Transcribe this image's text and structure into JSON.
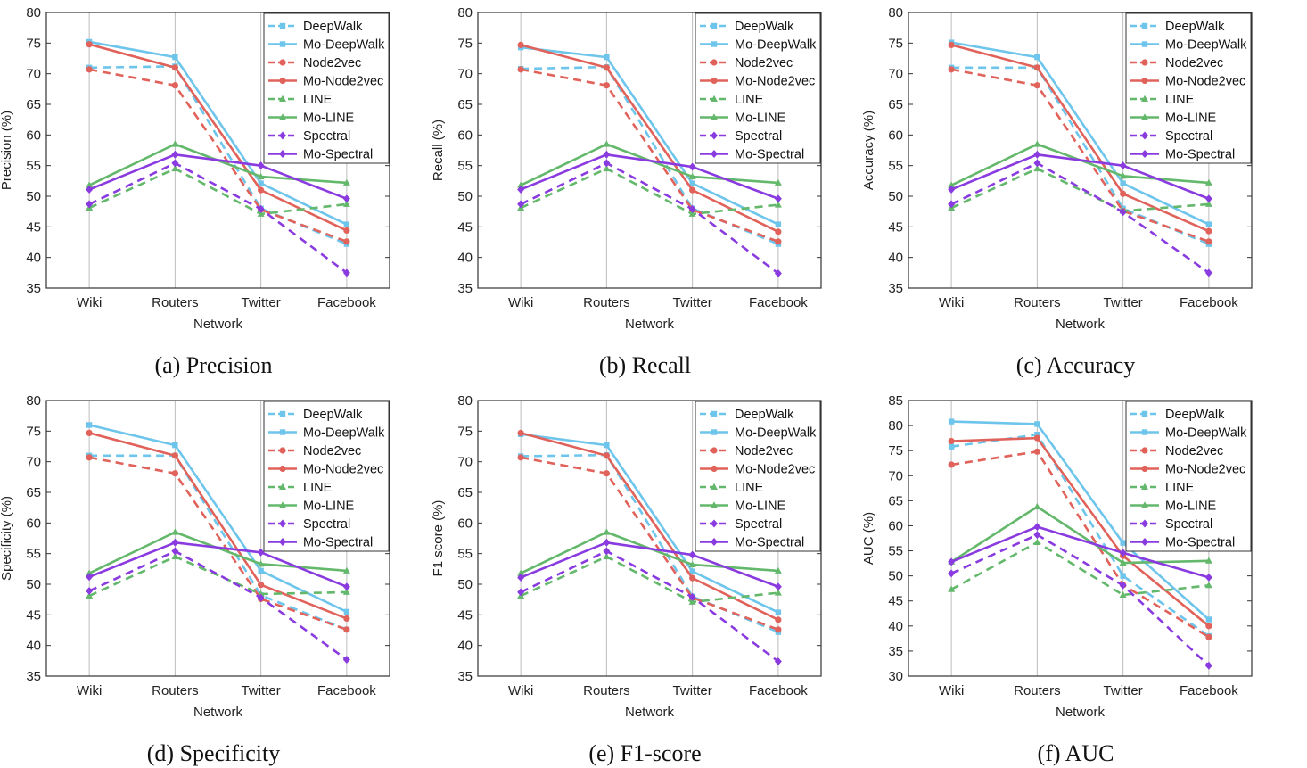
{
  "figure": {
    "colors": {
      "DeepWalk": "#6ec5ec",
      "Node2vec": "#e0625a",
      "LINE": "#63b86b",
      "Spectral": "#8a3be0"
    },
    "legend_placement": "top-right"
  },
  "chart_data": [
    {
      "type": "line",
      "caption": "(a) Precision",
      "ylabel": "Precision (%)",
      "xlabel": "Network",
      "categories": [
        "Wiki",
        "Routers",
        "Twitter",
        "Facebook"
      ],
      "ylim": [
        35,
        80
      ],
      "yticks": [
        35,
        40,
        45,
        50,
        55,
        60,
        65,
        70,
        75,
        80
      ],
      "series": [
        {
          "name": "DeepWalk",
          "values": [
            71.0,
            71.2,
            48.0,
            42.2
          ]
        },
        {
          "name": "Mo-DeepWalk",
          "values": [
            75.2,
            72.7,
            52.1,
            45.4
          ]
        },
        {
          "name": "Node2vec",
          "values": [
            70.7,
            68.1,
            47.8,
            42.6
          ]
        },
        {
          "name": "Mo-Node2vec",
          "values": [
            74.8,
            71.0,
            51.0,
            44.4
          ]
        },
        {
          "name": "LINE",
          "values": [
            48.1,
            54.5,
            47.1,
            48.7
          ]
        },
        {
          "name": "Mo-LINE",
          "values": [
            51.8,
            58.5,
            53.2,
            52.2
          ]
        },
        {
          "name": "Spectral",
          "values": [
            48.7,
            55.4,
            47.9,
            37.5
          ]
        },
        {
          "name": "Mo-Spectral",
          "values": [
            51.1,
            56.8,
            55.0,
            49.6
          ]
        }
      ]
    },
    {
      "type": "line",
      "caption": "(b) Recall",
      "ylabel": "Recall (%)",
      "xlabel": "Network",
      "categories": [
        "Wiki",
        "Routers",
        "Twitter",
        "Facebook"
      ],
      "ylim": [
        35,
        80
      ],
      "yticks": [
        35,
        40,
        45,
        50,
        55,
        60,
        65,
        70,
        75,
        80
      ],
      "series": [
        {
          "name": "DeepWalk",
          "values": [
            70.8,
            71.1,
            48.0,
            42.2
          ]
        },
        {
          "name": "Mo-DeepWalk",
          "values": [
            74.3,
            72.7,
            52.1,
            45.4
          ]
        },
        {
          "name": "Node2vec",
          "values": [
            70.7,
            68.1,
            47.8,
            42.6
          ]
        },
        {
          "name": "Mo-Node2vec",
          "values": [
            74.7,
            71.0,
            51.0,
            44.2
          ]
        },
        {
          "name": "LINE",
          "values": [
            48.1,
            54.5,
            47.1,
            48.6
          ]
        },
        {
          "name": "Mo-LINE",
          "values": [
            51.8,
            58.5,
            53.2,
            52.2
          ]
        },
        {
          "name": "Spectral",
          "values": [
            48.7,
            55.4,
            47.9,
            37.4
          ]
        },
        {
          "name": "Mo-Spectral",
          "values": [
            51.1,
            56.8,
            54.8,
            49.6
          ]
        }
      ]
    },
    {
      "type": "line",
      "caption": "(c) Accuracy",
      "ylabel": "Accuracy (%)",
      "xlabel": "Network",
      "categories": [
        "Wiki",
        "Routers",
        "Twitter",
        "Facebook"
      ],
      "ylim": [
        35,
        80
      ],
      "yticks": [
        35,
        40,
        45,
        50,
        55,
        60,
        65,
        70,
        75,
        80
      ],
      "series": [
        {
          "name": "DeepWalk",
          "values": [
            71.0,
            71.0,
            48.0,
            42.2
          ]
        },
        {
          "name": "Mo-DeepWalk",
          "values": [
            75.1,
            72.7,
            52.1,
            45.4
          ]
        },
        {
          "name": "Node2vec",
          "values": [
            70.7,
            68.1,
            47.6,
            42.6
          ]
        },
        {
          "name": "Mo-Node2vec",
          "values": [
            74.7,
            71.0,
            50.4,
            44.3
          ]
        },
        {
          "name": "LINE",
          "values": [
            48.1,
            54.5,
            47.6,
            48.7
          ]
        },
        {
          "name": "Mo-LINE",
          "values": [
            51.8,
            58.5,
            53.3,
            52.2
          ]
        },
        {
          "name": "Spectral",
          "values": [
            48.7,
            55.4,
            47.4,
            37.5
          ]
        },
        {
          "name": "Mo-Spectral",
          "values": [
            51.1,
            56.8,
            55.0,
            49.6
          ]
        }
      ]
    },
    {
      "type": "line",
      "caption": "(d) Specificity",
      "ylabel": "Specificity (%)",
      "xlabel": "Network",
      "categories": [
        "Wiki",
        "Routers",
        "Twitter",
        "Facebook"
      ],
      "ylim": [
        35,
        80
      ],
      "yticks": [
        35,
        40,
        45,
        50,
        55,
        60,
        65,
        70,
        75,
        80
      ],
      "series": [
        {
          "name": "DeepWalk",
          "values": [
            71.0,
            71.0,
            48.2,
            42.6
          ]
        },
        {
          "name": "Mo-DeepWalk",
          "values": [
            76.0,
            72.7,
            52.2,
            45.5
          ]
        },
        {
          "name": "Node2vec",
          "values": [
            70.7,
            68.1,
            47.6,
            42.6
          ]
        },
        {
          "name": "Mo-Node2vec",
          "values": [
            74.7,
            71.0,
            49.9,
            44.4
          ]
        },
        {
          "name": "LINE",
          "values": [
            48.1,
            54.5,
            48.4,
            48.7
          ]
        },
        {
          "name": "Mo-LINE",
          "values": [
            51.8,
            58.5,
            53.3,
            52.2
          ]
        },
        {
          "name": "Spectral",
          "values": [
            48.9,
            55.4,
            47.8,
            37.7
          ]
        },
        {
          "name": "Mo-Spectral",
          "values": [
            51.2,
            56.8,
            55.2,
            49.6
          ]
        }
      ]
    },
    {
      "type": "line",
      "caption": "(e) F1-score",
      "ylabel": "F1 score (%)",
      "xlabel": "Network",
      "categories": [
        "Wiki",
        "Routers",
        "Twitter",
        "Facebook"
      ],
      "ylim": [
        35,
        80
      ],
      "yticks": [
        35,
        40,
        45,
        50,
        55,
        60,
        65,
        70,
        75,
        80
      ],
      "series": [
        {
          "name": "DeepWalk",
          "values": [
            70.9,
            71.1,
            48.0,
            42.2
          ]
        },
        {
          "name": "Mo-DeepWalk",
          "values": [
            74.5,
            72.7,
            52.1,
            45.4
          ]
        },
        {
          "name": "Node2vec",
          "values": [
            70.7,
            68.1,
            47.8,
            42.6
          ]
        },
        {
          "name": "Mo-Node2vec",
          "values": [
            74.7,
            71.0,
            51.0,
            44.2
          ]
        },
        {
          "name": "LINE",
          "values": [
            48.1,
            54.5,
            47.1,
            48.6
          ]
        },
        {
          "name": "Mo-LINE",
          "values": [
            51.8,
            58.5,
            53.2,
            52.2
          ]
        },
        {
          "name": "Spectral",
          "values": [
            48.7,
            55.4,
            47.9,
            37.4
          ]
        },
        {
          "name": "Mo-Spectral",
          "values": [
            51.1,
            56.8,
            54.8,
            49.6
          ]
        }
      ]
    },
    {
      "type": "line",
      "caption": "(f) AUC",
      "ylabel": "AUC (%)",
      "xlabel": "Network",
      "categories": [
        "Wiki",
        "Routers",
        "Twitter",
        "Facebook"
      ],
      "ylim": [
        30,
        85
      ],
      "yticks": [
        30,
        35,
        40,
        45,
        50,
        55,
        60,
        65,
        70,
        75,
        80,
        85
      ],
      "series": [
        {
          "name": "DeepWalk",
          "values": [
            75.8,
            78.2,
            50.0,
            38.0
          ]
        },
        {
          "name": "Mo-DeepWalk",
          "values": [
            80.8,
            80.3,
            56.6,
            41.3
          ]
        },
        {
          "name": "Node2vec",
          "values": [
            72.2,
            74.8,
            48.2,
            37.8
          ]
        },
        {
          "name": "Mo-Node2vec",
          "values": [
            76.9,
            77.5,
            54.0,
            40.0
          ]
        },
        {
          "name": "LINE",
          "values": [
            47.3,
            56.7,
            46.2,
            48.1
          ]
        },
        {
          "name": "Mo-LINE",
          "values": [
            52.8,
            63.8,
            52.6,
            53.0
          ]
        },
        {
          "name": "Spectral",
          "values": [
            50.5,
            58.2,
            48.1,
            32.1
          ]
        },
        {
          "name": "Mo-Spectral",
          "values": [
            52.8,
            59.8,
            54.6,
            49.7
          ]
        }
      ]
    }
  ]
}
